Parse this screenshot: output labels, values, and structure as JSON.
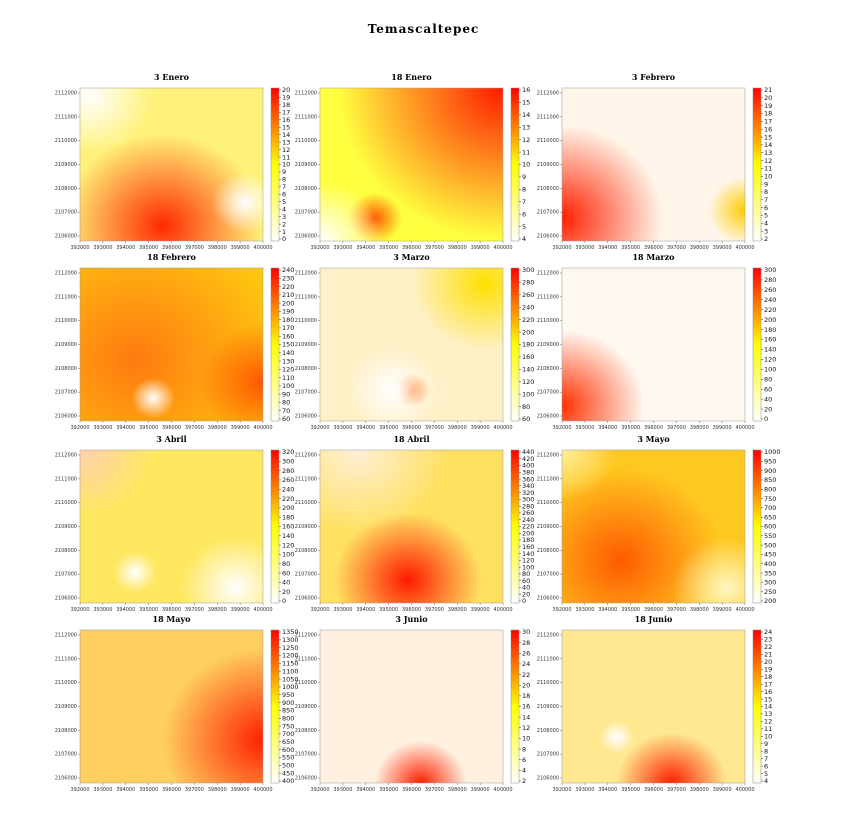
{
  "title": "Temascaltepec",
  "colors": {
    "low": "#ffffff",
    "mid": "#ffff00",
    "high": "#ff0000"
  },
  "chart_data": [
    {
      "type": "heatmap",
      "title": "3 Enero",
      "x_ticks": [
        "392000",
        "393000",
        "394000",
        "395000",
        "396000",
        "397000",
        "398000",
        "399000",
        "400000"
      ],
      "y_ticks": [
        "2112000",
        "2111000",
        "2110000",
        "2109000",
        "2108000",
        "2107000",
        "2106000"
      ],
      "colorbar_ticks": [
        20,
        19,
        18,
        17,
        16,
        15,
        14,
        13,
        12,
        11,
        10,
        9,
        8,
        7,
        6,
        5,
        4,
        3,
        2,
        1,
        0
      ]
    },
    {
      "type": "heatmap",
      "title": "18 Enero",
      "x_ticks": [
        "392000",
        "393000",
        "394000",
        "395000",
        "396000",
        "397000",
        "398000",
        "399000",
        "400000"
      ],
      "y_ticks": [
        "2112000",
        "2111000",
        "2110000",
        "2109000",
        "2108000",
        "2107000",
        "2106000"
      ],
      "colorbar_ticks": [
        16,
        15,
        14,
        13,
        12,
        11,
        10,
        9,
        8,
        7,
        6,
        5,
        4
      ]
    },
    {
      "type": "heatmap",
      "title": "3 Febrero",
      "x_ticks": [
        "392000",
        "393000",
        "394000",
        "395000",
        "396000",
        "397000",
        "398000",
        "399000",
        "400000"
      ],
      "y_ticks": [
        "2112000",
        "2111000",
        "2110000",
        "2109000",
        "2108000",
        "2107000",
        "2106000"
      ],
      "colorbar_ticks": [
        21,
        20,
        19,
        18,
        17,
        16,
        15,
        14,
        13,
        12,
        11,
        10,
        9,
        8,
        7,
        6,
        5,
        4,
        3,
        2
      ]
    },
    {
      "type": "heatmap",
      "title": "18 Febrero",
      "x_ticks": [
        "392000",
        "393000",
        "394000",
        "395000",
        "396000",
        "397000",
        "398000",
        "399000",
        "400000"
      ],
      "y_ticks": [
        "2112000",
        "2111000",
        "2110000",
        "2109000",
        "2108000",
        "2107000",
        "2106000"
      ],
      "colorbar_ticks": [
        240,
        230,
        220,
        210,
        200,
        190,
        180,
        170,
        160,
        150,
        140,
        130,
        120,
        110,
        100,
        90,
        80,
        70,
        60
      ]
    },
    {
      "type": "heatmap",
      "title": "3 Marzo",
      "x_ticks": [
        "392000",
        "393000",
        "394000",
        "395000",
        "396000",
        "397000",
        "398000",
        "399000",
        "400000"
      ],
      "y_ticks": [
        "2112000",
        "2111000",
        "2110000",
        "2109000",
        "2108000",
        "2107000",
        "2106000"
      ],
      "colorbar_ticks": [
        300,
        280,
        260,
        240,
        220,
        200,
        180,
        160,
        140,
        120,
        100,
        80,
        60
      ]
    },
    {
      "type": "heatmap",
      "title": "18 Marzo",
      "x_ticks": [
        "392000",
        "393000",
        "394000",
        "395000",
        "396000",
        "397000",
        "398000",
        "399000",
        "400000"
      ],
      "y_ticks": [
        "2112000",
        "2111000",
        "2110000",
        "2109000",
        "2108000",
        "2107000",
        "2106000"
      ],
      "colorbar_ticks": [
        300,
        280,
        260,
        240,
        220,
        200,
        180,
        160,
        140,
        120,
        100,
        80,
        60,
        40,
        20,
        0
      ]
    },
    {
      "type": "heatmap",
      "title": "3 Abril",
      "x_ticks": [
        "392000",
        "393000",
        "394000",
        "395000",
        "396000",
        "397000",
        "398000",
        "399000",
        "400000"
      ],
      "y_ticks": [
        "2112000",
        "2111000",
        "2110000",
        "2109000",
        "2108000",
        "2107000",
        "2106000"
      ],
      "colorbar_ticks": [
        320,
        300,
        280,
        260,
        240,
        220,
        200,
        180,
        160,
        140,
        120,
        100,
        80,
        60,
        40,
        20,
        0
      ]
    },
    {
      "type": "heatmap",
      "title": "18 Abril",
      "x_ticks": [
        "392000",
        "393000",
        "394000",
        "395000",
        "396000",
        "397000",
        "398000",
        "399000",
        "400000"
      ],
      "y_ticks": [
        "2112000",
        "2111000",
        "2110000",
        "2109000",
        "2108000",
        "2107000",
        "2106000"
      ],
      "colorbar_ticks": [
        440,
        420,
        400,
        380,
        360,
        340,
        320,
        300,
        280,
        260,
        240,
        220,
        200,
        180,
        160,
        140,
        120,
        100,
        80,
        60,
        40,
        20,
        0
      ]
    },
    {
      "type": "heatmap",
      "title": "3 Mayo",
      "x_ticks": [
        "392000",
        "393000",
        "394000",
        "395000",
        "396000",
        "397000",
        "398000",
        "399000",
        "400000"
      ],
      "y_ticks": [
        "2112000",
        "2111000",
        "2110000",
        "2109000",
        "2108000",
        "2107000",
        "2106000"
      ],
      "colorbar_ticks": [
        1000,
        950,
        900,
        850,
        800,
        750,
        700,
        650,
        600,
        550,
        500,
        450,
        400,
        350,
        300,
        250,
        200
      ]
    },
    {
      "type": "heatmap",
      "title": "18 Mayo",
      "x_ticks": [
        "392000",
        "393000",
        "394000",
        "395000",
        "396000",
        "397000",
        "398000",
        "399000",
        "400000"
      ],
      "y_ticks": [
        "2112000",
        "2111000",
        "2110000",
        "2109000",
        "2108000",
        "2107000",
        "2106000"
      ],
      "colorbar_ticks": [
        1350,
        1300,
        1250,
        1200,
        1150,
        1100,
        1050,
        1000,
        950,
        900,
        850,
        800,
        750,
        700,
        650,
        600,
        550,
        500,
        450,
        400
      ]
    },
    {
      "type": "heatmap",
      "title": "3 Junio",
      "x_ticks": [
        "392000",
        "393000",
        "394000",
        "395000",
        "396000",
        "397000",
        "398000",
        "399000",
        "400000"
      ],
      "y_ticks": [
        "2112000",
        "2111000",
        "2110000",
        "2109000",
        "2108000",
        "2107000",
        "2106000"
      ],
      "colorbar_ticks": [
        30,
        28,
        26,
        24,
        22,
        20,
        18,
        16,
        14,
        12,
        10,
        8,
        6,
        4,
        2
      ]
    },
    {
      "type": "heatmap",
      "title": "18 Junio",
      "x_ticks": [
        "392000",
        "393000",
        "394000",
        "395000",
        "396000",
        "397000",
        "398000",
        "399000",
        "400000"
      ],
      "y_ticks": [
        "2112000",
        "2111000",
        "2110000",
        "2109000",
        "2108000",
        "2107000",
        "2106000"
      ],
      "colorbar_ticks": [
        24,
        23,
        22,
        21,
        20,
        19,
        18,
        17,
        16,
        15,
        14,
        13,
        12,
        11,
        10,
        9,
        8,
        7,
        6,
        5,
        4
      ]
    }
  ]
}
